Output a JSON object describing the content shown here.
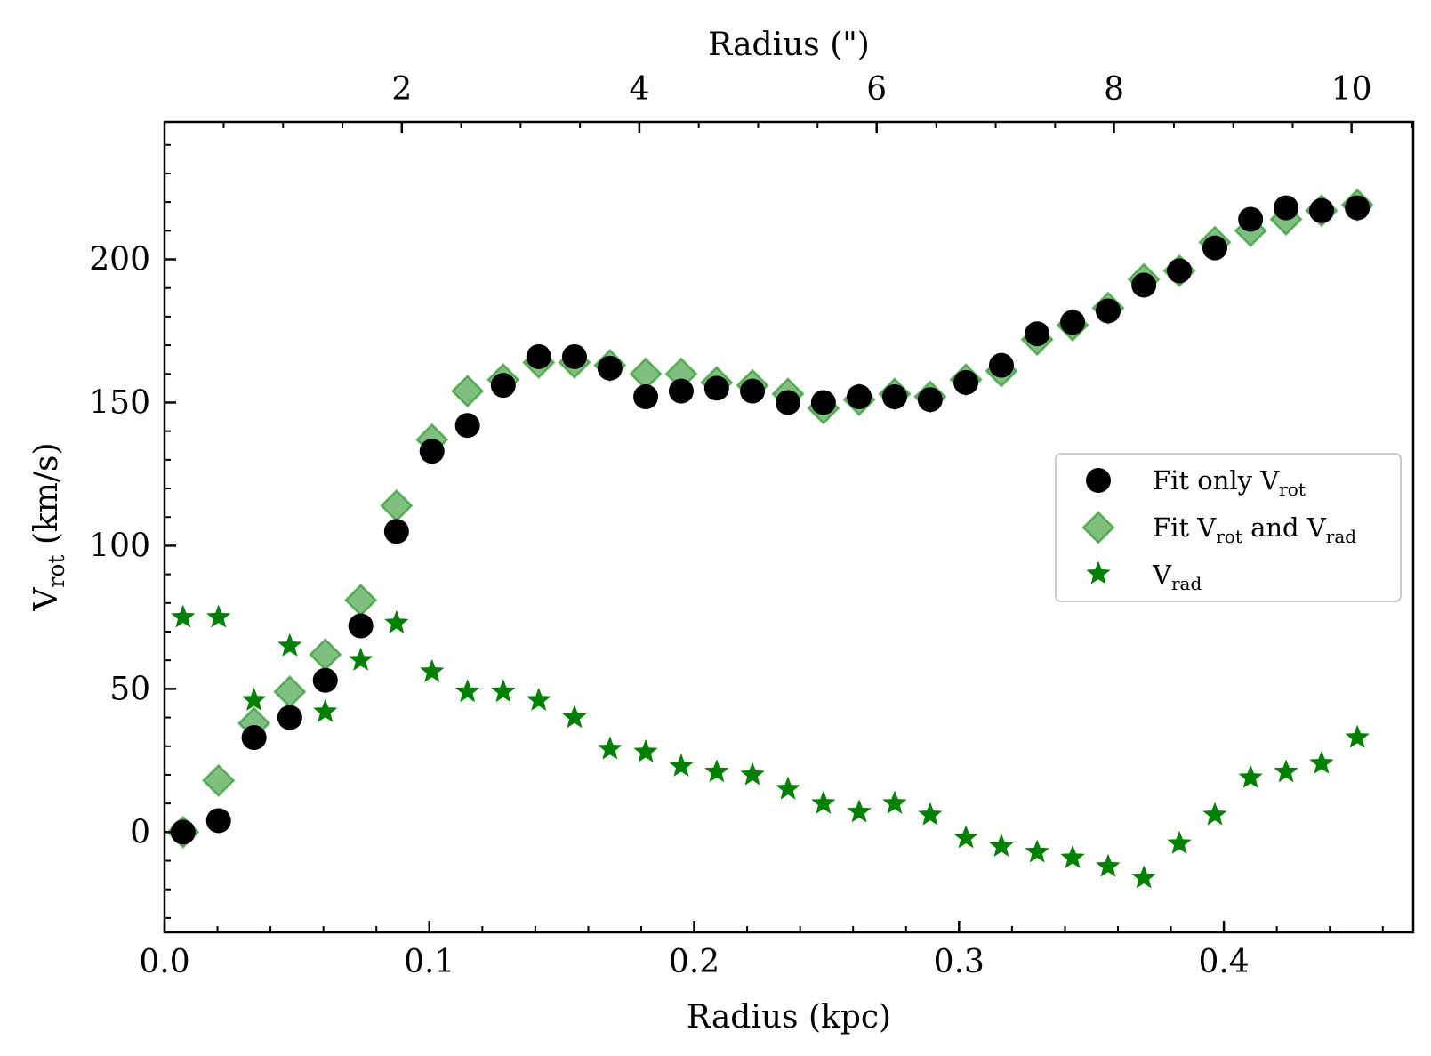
{
  "chart_data": {
    "type": "scatter",
    "xlabel": "Radius (kpc)",
    "ylabel": "V",
    "ylabel_sub": "rot",
    "ylabel_rest": " (km/s)",
    "top_xlabel": "Radius (\")",
    "xlim": [
      0,
      0.4715
    ],
    "ylim": [
      -35,
      248
    ],
    "x_ticks": [
      0.0,
      0.1,
      0.2,
      0.3,
      0.4
    ],
    "x_tick_labels": [
      "0.0",
      "0.1",
      "0.2",
      "0.3",
      "0.4"
    ],
    "y_ticks": [
      0,
      50,
      100,
      150,
      200
    ],
    "y_tick_labels": [
      "0",
      "50",
      "100",
      "150",
      "200"
    ],
    "top_ticks_kpc": [
      0.0896,
      0.1793,
      0.2689,
      0.3585,
      0.4482
    ],
    "top_tick_labels": [
      "2",
      "4",
      "6",
      "8",
      "10"
    ],
    "legend_position": "center-right",
    "legend": [
      {
        "main": "Fit only V",
        "sub": "rot",
        "rest": "",
        "sub2": "",
        "marker": "circle",
        "color": "#000000"
      },
      {
        "main": "Fit V",
        "sub": "rot",
        "rest": " and V",
        "sub2": "rad",
        "marker": "diamond",
        "color": "#4daa4d"
      },
      {
        "main": "V",
        "sub": "rad",
        "rest": "",
        "sub2": "",
        "marker": "star",
        "color": "#008000"
      }
    ],
    "x": [
      0.007,
      0.0204,
      0.0338,
      0.0473,
      0.0607,
      0.0741,
      0.0876,
      0.101,
      0.1144,
      0.1279,
      0.1413,
      0.1548,
      0.1682,
      0.1817,
      0.1951,
      0.2085,
      0.222,
      0.2354,
      0.2488,
      0.2623,
      0.2757,
      0.2891,
      0.3026,
      0.316,
      0.3295,
      0.3429,
      0.3563,
      0.3698,
      0.3832,
      0.3966,
      0.4101,
      0.4235,
      0.4369,
      0.4504
    ],
    "series": [
      {
        "name": "Fit only Vrot",
        "marker": "circle",
        "color": "#000000",
        "values": [
          0,
          4,
          33,
          40,
          53,
          72,
          105,
          133,
          142,
          156,
          166,
          166,
          162,
          152,
          154,
          155,
          154,
          150,
          150,
          152,
          152,
          151,
          157,
          163,
          174,
          178,
          182,
          191,
          196,
          204,
          214,
          218,
          217,
          218
        ]
      },
      {
        "name": "Fit Vrot and Vrad",
        "marker": "diamond",
        "color": "#4daa4d",
        "values": [
          0,
          18,
          38,
          49,
          62,
          81,
          114,
          137,
          154,
          158,
          164,
          164,
          163,
          160,
          160,
          157,
          156,
          153,
          148,
          151,
          153,
          152,
          158,
          161,
          172,
          177,
          183,
          193,
          196,
          206,
          210,
          214,
          217,
          219
        ]
      },
      {
        "name": "Vrad",
        "marker": "star",
        "color": "#008000",
        "values": [
          75,
          75,
          46,
          65,
          42,
          60,
          73,
          56,
          49,
          49,
          46,
          40,
          29,
          28,
          23,
          21,
          20,
          15,
          10,
          7,
          10,
          6,
          -2,
          -5,
          -7,
          -9,
          -12,
          -16,
          -4,
          6,
          19,
          21,
          24,
          33
        ]
      }
    ]
  }
}
